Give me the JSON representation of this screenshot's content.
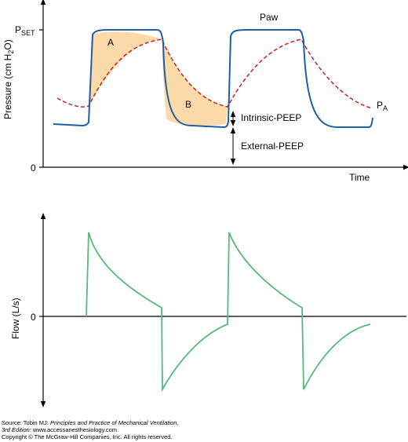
{
  "pressure_panel": {
    "y_axis_label": "Pressure (cm H",
    "y_axis_label_sub": "2",
    "y_axis_label_end": "O)",
    "p_set_label": "P",
    "p_set_sub": "SET",
    "zero_label": "0",
    "x_axis_label": "Time",
    "paw_label": "Paw",
    "pa_label": "P",
    "pa_sub": "A",
    "area_a_label": "A",
    "area_b_label": "B",
    "intrinsic_peep_label": "Intrinsic-PEEP",
    "external_peep_label": "External-PEEP"
  },
  "flow_panel": {
    "y_axis_label": "Flow (L/s)",
    "zero_label": "0"
  },
  "source": {
    "line1_prefix": "Source: Tobin MJ: ",
    "line1_title": "Principles and Practice of Mechanical Ventilation,",
    "line2_edition": "3rd Edition",
    "line2_rest": ": www.accessanesthesiology.com",
    "line3": "Copyright © The McGraw-Hill Companies, Inc. All rights reserved."
  },
  "colors": {
    "paw_line": "#1e5fa0",
    "pa_line": "#cc2222",
    "area_fill": "#fbd9a8",
    "flow_line": "#5ab878",
    "axis": "#000000"
  }
}
